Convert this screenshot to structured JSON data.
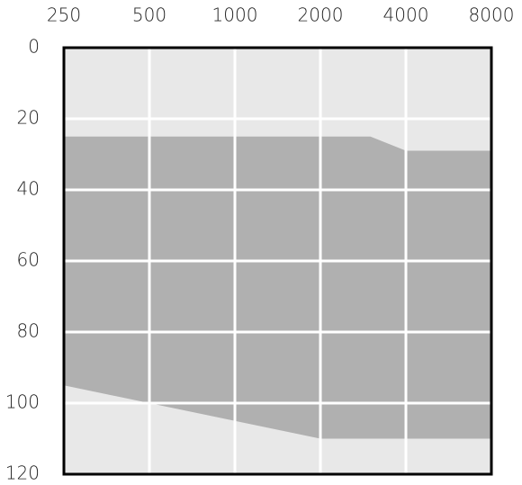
{
  "chart_data": {
    "type": "area",
    "x": [
      250,
      500,
      1000,
      2000,
      3000,
      4000,
      8000
    ],
    "series": [
      {
        "color": "#b0b0b0",
        "values": [
          95,
          100,
          105,
          110,
          110,
          110,
          110
        ]
      },
      {
        "color": "#e8e8e8",
        "values": [
          25,
          25,
          25,
          25,
          25,
          29,
          29
        ]
      }
    ],
    "xlim": [
      250,
      8000
    ],
    "xticks": [
      250,
      500,
      1000,
      2000,
      4000,
      8000
    ],
    "xscale": "log",
    "x_axis_position": "top",
    "ylim": [
      0,
      120
    ],
    "yticks": [
      0,
      20,
      40,
      60,
      80,
      100,
      120
    ],
    "y_inverted": true,
    "grid": true,
    "background": "#e8e8e8"
  }
}
